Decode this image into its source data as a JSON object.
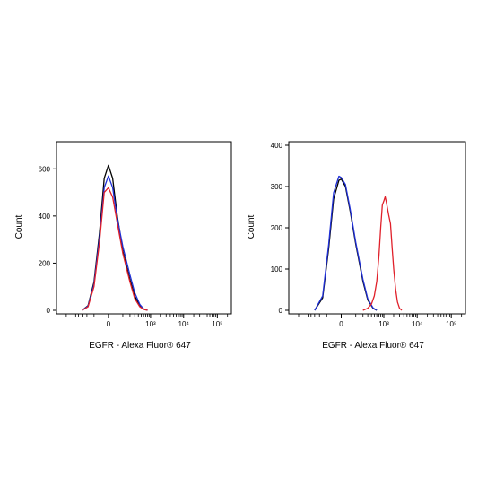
{
  "colors": {
    "black": "#000000",
    "blue": "#1f2fd6",
    "red": "#e0202a"
  },
  "chart_data": [
    {
      "type": "line",
      "xlabel": "EGFR - Alexa Fluor® 647",
      "ylabel": "Count",
      "x_scale": "biexponential",
      "x_ticks": [
        "0",
        "10³",
        "10⁴",
        "10⁵"
      ],
      "ylim": [
        0,
        700
      ],
      "y_ticks": [
        0,
        200,
        400,
        600
      ],
      "series": [
        {
          "color": "black",
          "x": [
            -300,
            -180,
            -100,
            -50,
            -20,
            0,
            20,
            50,
            100,
            200,
            300,
            450,
            600,
            800
          ],
          "values": [
            0,
            20,
            120,
            330,
            560,
            615,
            560,
            400,
            250,
            130,
            60,
            20,
            5,
            0
          ]
        },
        {
          "color": "blue",
          "x": [
            -300,
            -180,
            -100,
            -50,
            -20,
            0,
            20,
            50,
            100,
            200,
            300,
            450,
            600,
            800
          ],
          "values": [
            0,
            18,
            110,
            310,
            520,
            570,
            520,
            390,
            270,
            150,
            75,
            25,
            6,
            0
          ]
        },
        {
          "color": "red",
          "x": [
            -300,
            -180,
            -100,
            -50,
            -20,
            0,
            20,
            50,
            100,
            200,
            300,
            450,
            600,
            800
          ],
          "values": [
            0,
            15,
            100,
            290,
            500,
            520,
            480,
            370,
            240,
            120,
            50,
            15,
            4,
            0
          ]
        }
      ]
    },
    {
      "type": "line",
      "xlabel": "EGFR - Alexa Fluor® 647",
      "ylabel": "Count",
      "x_scale": "biexponential",
      "x_ticks": [
        "0",
        "10³",
        "10⁴",
        "10⁵"
      ],
      "ylim": [
        0,
        400
      ],
      "y_ticks": [
        0,
        100,
        200,
        300,
        400
      ],
      "series": [
        {
          "color": "black",
          "x": [
            -300,
            -150,
            -80,
            -40,
            -10,
            0,
            20,
            50,
            100,
            200,
            300,
            450,
            600
          ],
          "values": [
            0,
            30,
            150,
            270,
            315,
            318,
            300,
            240,
            160,
            70,
            25,
            5,
            0
          ]
        },
        {
          "color": "blue",
          "x": [
            -300,
            -150,
            -80,
            -40,
            -10,
            0,
            20,
            50,
            100,
            200,
            300,
            450,
            600
          ],
          "values": [
            0,
            35,
            160,
            285,
            325,
            322,
            305,
            245,
            165,
            75,
            28,
            6,
            0
          ]
        },
        {
          "color": "red",
          "x": [
            200,
            300,
            400,
            500,
            600,
            700,
            800,
            900,
            1000,
            1100,
            1200,
            1400,
            1600,
            1800,
            2000,
            2300,
            2600,
            3000,
            3500
          ],
          "values": [
            0,
            5,
            15,
            35,
            70,
            130,
            200,
            255,
            265,
            275,
            262,
            232,
            210,
            150,
            100,
            50,
            20,
            5,
            0
          ]
        }
      ]
    }
  ]
}
